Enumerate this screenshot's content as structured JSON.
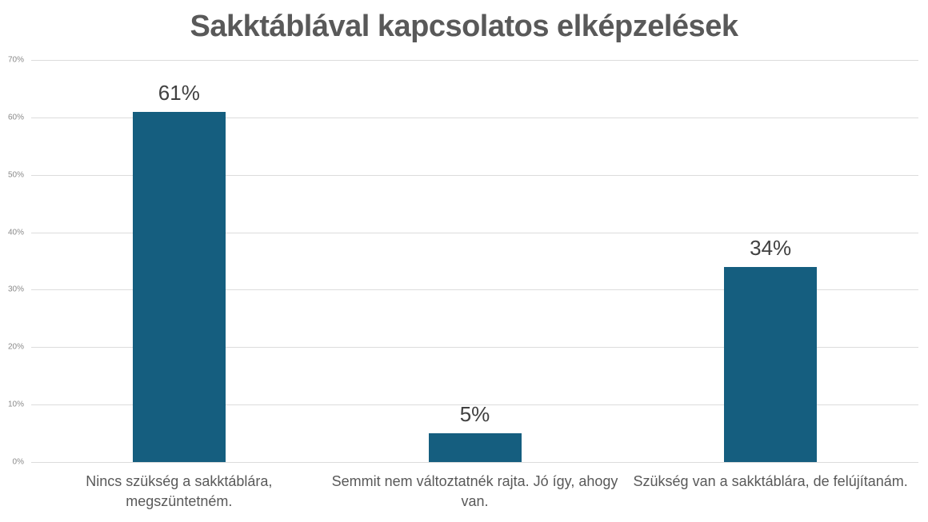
{
  "chart_data": {
    "type": "bar",
    "title": "Sakktáblával kapcsolatos elképzelések",
    "categories": [
      "Nincs szükség a sakktáblára, megszüntetném.",
      "Semmit nem változtatnék rajta. Jó így, ahogy van.",
      "Szükség van a sakktáblára, de felújítanám."
    ],
    "values": [
      61,
      5,
      34
    ],
    "data_labels": [
      "61%",
      "5%",
      "34%"
    ],
    "xlabel": "",
    "ylabel": "",
    "ylim": [
      0,
      70
    ],
    "ytick_step": 10,
    "ytick_labels": [
      "0%",
      "10%",
      "20%",
      "30%",
      "40%",
      "50%",
      "60%",
      "70%"
    ],
    "grid": true,
    "legend": false,
    "colors": {
      "bar": "#155e7f",
      "title": "#595959",
      "value_label": "#404040",
      "ytick_label": "#8a8a8a",
      "category_label": "#595959",
      "gridline": "#dcdcdc",
      "background": "#ffffff"
    }
  }
}
